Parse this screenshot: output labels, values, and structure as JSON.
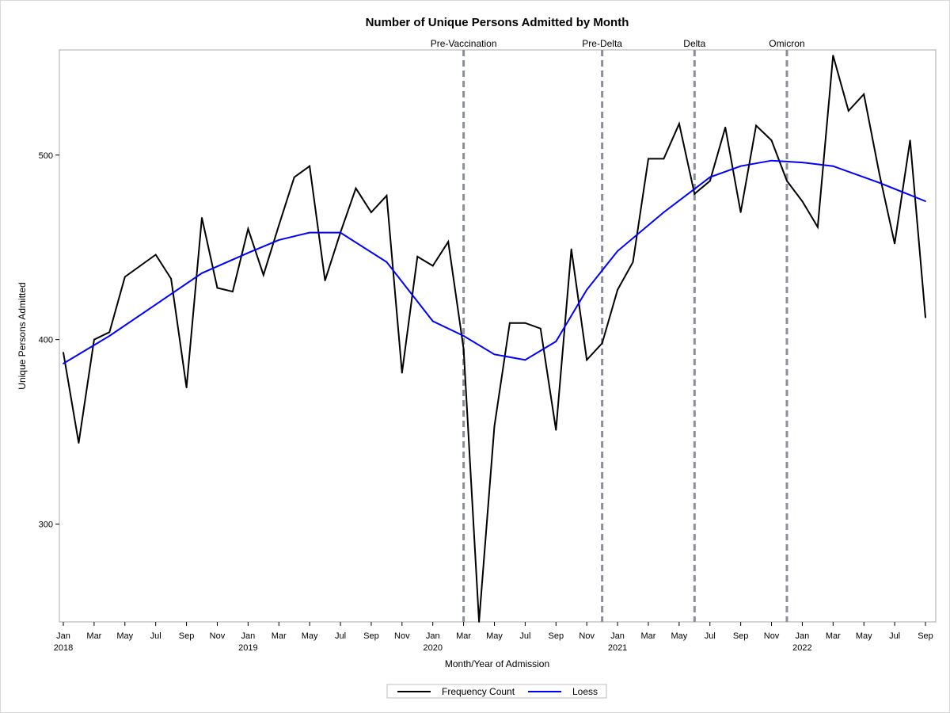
{
  "chart_data": {
    "type": "line",
    "title": "Number of Unique Persons Admitted by Month",
    "xlabel": "Month/Year of Admission",
    "ylabel": "Unique Persons Admitted",
    "x_range": [
      "2018-01",
      "2022-09"
    ],
    "ylim": [
      247,
      557
    ],
    "yticks": [
      300,
      400,
      500
    ],
    "x_tick_months": [
      "2018-01",
      "2018-03",
      "2018-05",
      "2018-07",
      "2018-09",
      "2018-11",
      "2019-01",
      "2019-03",
      "2019-05",
      "2019-07",
      "2019-09",
      "2019-11",
      "2020-01",
      "2020-03",
      "2020-05",
      "2020-07",
      "2020-09",
      "2020-11",
      "2021-01",
      "2021-03",
      "2021-05",
      "2021-07",
      "2021-09",
      "2021-11",
      "2022-01",
      "2022-03",
      "2022-05",
      "2022-07",
      "2022-09"
    ],
    "x_tick_labels": [
      "Jan",
      "Mar",
      "May",
      "Jul",
      "Sep",
      "Nov",
      "Jan",
      "Mar",
      "May",
      "Jul",
      "Sep",
      "Nov",
      "Jan",
      "Mar",
      "May",
      "Jul",
      "Sep",
      "Nov",
      "Jan",
      "Mar",
      "May",
      "Jul",
      "Sep",
      "Nov",
      "Jan",
      "Mar",
      "May",
      "Jul",
      "Sep"
    ],
    "year_labels": [
      {
        "month": "2018-01",
        "label": "2018"
      },
      {
        "month": "2019-01",
        "label": "2019"
      },
      {
        "month": "2020-01",
        "label": "2020"
      },
      {
        "month": "2021-01",
        "label": "2021"
      },
      {
        "month": "2022-01",
        "label": "2022"
      }
    ],
    "x": [
      "2018-01",
      "2018-02",
      "2018-03",
      "2018-04",
      "2018-05",
      "2018-06",
      "2018-07",
      "2018-08",
      "2018-09",
      "2018-10",
      "2018-11",
      "2018-12",
      "2019-01",
      "2019-02",
      "2019-03",
      "2019-04",
      "2019-05",
      "2019-06",
      "2019-07",
      "2019-08",
      "2019-09",
      "2019-10",
      "2019-11",
      "2019-12",
      "2020-01",
      "2020-02",
      "2020-03",
      "2020-04",
      "2020-05",
      "2020-06",
      "2020-07",
      "2020-08",
      "2020-09",
      "2020-10",
      "2020-11",
      "2020-12",
      "2021-01",
      "2021-02",
      "2021-03",
      "2021-04",
      "2021-05",
      "2021-06",
      "2021-07",
      "2021-08",
      "2021-09",
      "2021-10",
      "2021-11",
      "2021-12",
      "2022-01",
      "2022-02",
      "2022-03",
      "2022-04",
      "2022-05",
      "2022-06",
      "2022-07",
      "2022-08",
      "2022-09"
    ],
    "series": [
      {
        "name": "Frequency Count",
        "color": "#000000",
        "values": [
          393,
          344,
          400,
          404,
          434,
          440,
          446,
          433,
          374,
          466,
          428,
          426,
          460,
          435,
          462,
          488,
          494,
          432,
          458,
          482,
          469,
          478,
          382,
          445,
          440,
          453,
          395,
          247,
          353,
          409,
          409,
          406,
          351,
          449,
          389,
          398,
          427,
          442,
          498,
          498,
          517,
          479,
          486,
          515,
          469,
          516,
          508,
          486,
          475,
          461,
          554,
          524,
          533,
          490,
          452,
          508,
          412
        ]
      },
      {
        "name": "Loess",
        "color": "#0000ff",
        "points": [
          {
            "x": "2018-01",
            "y": 387
          },
          {
            "x": "2018-04",
            "y": 402
          },
          {
            "x": "2018-07",
            "y": 419
          },
          {
            "x": "2018-10",
            "y": 436
          },
          {
            "x": "2019-01",
            "y": 447
          },
          {
            "x": "2019-03",
            "y": 454
          },
          {
            "x": "2019-05",
            "y": 458
          },
          {
            "x": "2019-07",
            "y": 458
          },
          {
            "x": "2019-10",
            "y": 442
          },
          {
            "x": "2020-01",
            "y": 410
          },
          {
            "x": "2020-03",
            "y": 402
          },
          {
            "x": "2020-05",
            "y": 392
          },
          {
            "x": "2020-07",
            "y": 389
          },
          {
            "x": "2020-09",
            "y": 399
          },
          {
            "x": "2020-11",
            "y": 427
          },
          {
            "x": "2021-01",
            "y": 448
          },
          {
            "x": "2021-04",
            "y": 469
          },
          {
            "x": "2021-07",
            "y": 488
          },
          {
            "x": "2021-09",
            "y": 494
          },
          {
            "x": "2021-11",
            "y": 497
          },
          {
            "x": "2022-01",
            "y": 496
          },
          {
            "x": "2022-03",
            "y": 494
          },
          {
            "x": "2022-06",
            "y": 485
          },
          {
            "x": "2022-09",
            "y": 475
          }
        ]
      }
    ],
    "reference_lines": [
      {
        "label": "Pre-Vaccination",
        "x": "2020-03",
        "color": "#8a8f98",
        "style": "dashed"
      },
      {
        "label": "Pre-Delta",
        "x": "2020-12",
        "color": "#8a8f98",
        "style": "dashed"
      },
      {
        "label": "Delta",
        "x": "2021-06",
        "color": "#8a8f98",
        "style": "dashed"
      },
      {
        "label": "Omicron",
        "x": "2021-12",
        "color": "#8a8f98",
        "style": "dashed"
      }
    ],
    "legend": {
      "position": "bottom-center",
      "entries": [
        {
          "label": "Frequency Count",
          "color": "#000000"
        },
        {
          "label": "Loess",
          "color": "#0000ff"
        }
      ]
    },
    "grid": false
  }
}
